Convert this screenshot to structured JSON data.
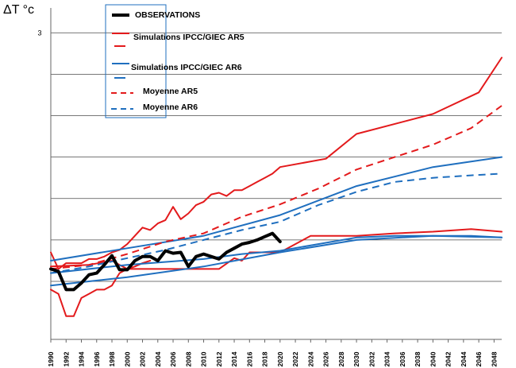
{
  "chart_data": {
    "type": "line",
    "ylabel": "ΔT °c",
    "y_tick_labels": [
      {
        "value": 3,
        "label": "3"
      }
    ],
    "ylim": [
      -0.7,
      3.3
    ],
    "xlim": [
      1990,
      2049
    ],
    "x_ticks": [
      1990,
      1992,
      1994,
      1996,
      1998,
      2000,
      2002,
      2004,
      2006,
      2008,
      2010,
      2012,
      2014,
      2016,
      2018,
      2020,
      2022,
      2024,
      2026,
      2028,
      2030,
      2032,
      2034,
      2036,
      2038,
      2040,
      2042,
      2044,
      2046,
      2048
    ],
    "gridlines_y": [
      0,
      0.5,
      1.0,
      1.5,
      2.0,
      2.5,
      3.0
    ],
    "grid": true,
    "legend": {
      "position": "top-left",
      "entries": [
        {
          "label": "OBSERVATIONS",
          "color": "#000000",
          "style": "solid",
          "width": 4
        },
        {
          "label": "Simulations IPCC/GIEC AR5",
          "color": "#e31a1c",
          "style": "solid",
          "width": 2
        },
        {
          "label": "Simulations IPCC/GIEC AR6",
          "color": "#1f6fbf",
          "style": "solid",
          "width": 2
        },
        {
          "label": "Moyenne  AR5",
          "color": "#e31a1c",
          "style": "dashed",
          "width": 2
        },
        {
          "label": "Moyenne  AR6",
          "color": "#1f6fbf",
          "style": "dashed",
          "width": 2
        }
      ]
    },
    "series": [
      {
        "name": "OBSERVATIONS",
        "color": "#000000",
        "style": "solid",
        "width": 4,
        "x": [
          1990,
          1991,
          1992,
          1993,
          1994,
          1995,
          1996,
          1997,
          1998,
          1999,
          2000,
          2001,
          2002,
          2003,
          2004,
          2005,
          2006,
          2007,
          2008,
          2009,
          2010,
          2011,
          2012,
          2013,
          2014,
          2015,
          2016,
          2017,
          2018,
          2019,
          2020
        ],
        "y": [
          0.15,
          0.12,
          -0.1,
          -0.1,
          -0.02,
          0.08,
          0.1,
          0.2,
          0.31,
          0.14,
          0.14,
          0.25,
          0.3,
          0.3,
          0.25,
          0.37,
          0.34,
          0.35,
          0.18,
          0.3,
          0.33,
          0.3,
          0.27,
          0.35,
          0.4,
          0.45,
          0.47,
          0.5,
          0.54,
          0.58,
          0.48
        ]
      },
      {
        "name": "Simulations IPCC/GIEC AR5 (upper)",
        "color": "#e31a1c",
        "style": "solid",
        "width": 2,
        "x": [
          1990,
          1991,
          1992,
          1993,
          1994,
          1995,
          1996,
          1997,
          1998,
          1999,
          2000,
          2001,
          2002,
          2003,
          2004,
          2005,
          2006,
          2007,
          2008,
          2009,
          2010,
          2011,
          2012,
          2013,
          2014,
          2015,
          2016,
          2017,
          2018,
          2019,
          2020,
          2026,
          2030,
          2040,
          2046,
          2049
        ],
        "y": [
          0.35,
          0.15,
          0.22,
          0.22,
          0.22,
          0.27,
          0.27,
          0.3,
          0.35,
          0.38,
          0.45,
          0.55,
          0.65,
          0.62,
          0.7,
          0.74,
          0.9,
          0.75,
          0.82,
          0.92,
          0.96,
          1.05,
          1.07,
          1.03,
          1.1,
          1.1,
          1.15,
          1.2,
          1.25,
          1.3,
          1.38,
          1.48,
          1.78,
          2.02,
          2.28,
          2.7
        ]
      },
      {
        "name": "Simulations IPCC/GIEC AR5 (middle)",
        "color": "#e31a1c",
        "style": "solid",
        "width": 2,
        "x": [
          1990,
          1995,
          1998,
          1999,
          2000,
          2001,
          2004,
          2006,
          2008,
          2010,
          2012,
          2014,
          2015,
          2016,
          2019,
          2020,
          2024,
          2030,
          2035,
          2040,
          2045,
          2049
        ],
        "y": [
          0.18,
          0.2,
          0.25,
          0.2,
          0.15,
          0.15,
          0.15,
          0.15,
          0.15,
          0.15,
          0.15,
          0.28,
          0.25,
          0.35,
          0.35,
          0.35,
          0.55,
          0.55,
          0.58,
          0.6,
          0.63,
          0.6
        ]
      },
      {
        "name": "Simulations IPCC/GIEC AR5 (lower)",
        "color": "#e31a1c",
        "style": "solid",
        "width": 2,
        "x": [
          1990,
          1991,
          1992,
          1993,
          1994,
          1995,
          1996,
          1997,
          1998,
          1999,
          2000,
          2001,
          2002,
          2003
        ],
        "y": [
          -0.1,
          -0.15,
          -0.42,
          -0.42,
          -0.2,
          -0.15,
          -0.1,
          -0.1,
          -0.05,
          0.1,
          0.15,
          0.18,
          0.22,
          0.25
        ]
      },
      {
        "name": "Simulations IPCC/GIEC AR6 (upper)",
        "color": "#1f6fbf",
        "style": "solid",
        "width": 2,
        "x": [
          1990,
          2000,
          2010,
          2020,
          2030,
          2040,
          2049
        ],
        "y": [
          0.25,
          0.4,
          0.55,
          0.8,
          1.15,
          1.38,
          1.5
        ]
      },
      {
        "name": "Simulations IPCC/GIEC AR6 (middle)",
        "color": "#1f6fbf",
        "style": "solid",
        "width": 2,
        "x": [
          1990,
          2000,
          2010,
          2015,
          2020,
          2025,
          2030,
          2035,
          2040,
          2045,
          2049
        ],
        "y": [
          0.1,
          0.2,
          0.27,
          0.33,
          0.37,
          0.45,
          0.53,
          0.55,
          0.55,
          0.55,
          0.53
        ]
      },
      {
        "name": "Simulations IPCC/GIEC AR6 (lower)",
        "color": "#1f6fbf",
        "style": "solid",
        "width": 2,
        "x": [
          1990,
          2000,
          2010,
          2020,
          2030,
          2040,
          2049
        ],
        "y": [
          -0.05,
          0.05,
          0.18,
          0.35,
          0.5,
          0.55,
          0.53
        ]
      },
      {
        "name": "Moyenne  AR5",
        "color": "#e31a1c",
        "style": "dashed",
        "width": 2,
        "x": [
          1990,
          1995,
          2000,
          2005,
          2010,
          2015,
          2020,
          2025,
          2030,
          2035,
          2040,
          2045,
          2049
        ],
        "y": [
          0.15,
          0.2,
          0.33,
          0.48,
          0.58,
          0.78,
          0.93,
          1.12,
          1.35,
          1.5,
          1.65,
          1.85,
          2.12
        ]
      },
      {
        "name": "Moyenne  AR6",
        "color": "#1f6fbf",
        "style": "dashed",
        "width": 2,
        "x": [
          1990,
          1995,
          2000,
          2005,
          2010,
          2015,
          2020,
          2025,
          2030,
          2035,
          2040,
          2045,
          2049
        ],
        "y": [
          0.1,
          0.18,
          0.28,
          0.38,
          0.5,
          0.62,
          0.72,
          0.92,
          1.08,
          1.2,
          1.25,
          1.28,
          1.3
        ]
      }
    ]
  }
}
